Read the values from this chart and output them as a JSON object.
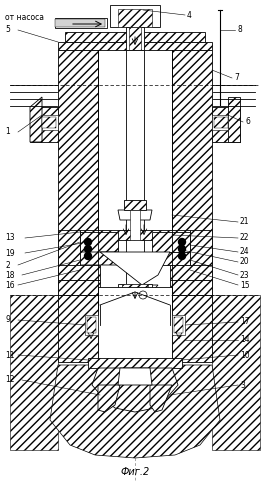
{
  "title": "Фиг.2",
  "bg_color": "#ffffff",
  "figsize": [
    2.7,
    5.0
  ],
  "dpi": 100
}
